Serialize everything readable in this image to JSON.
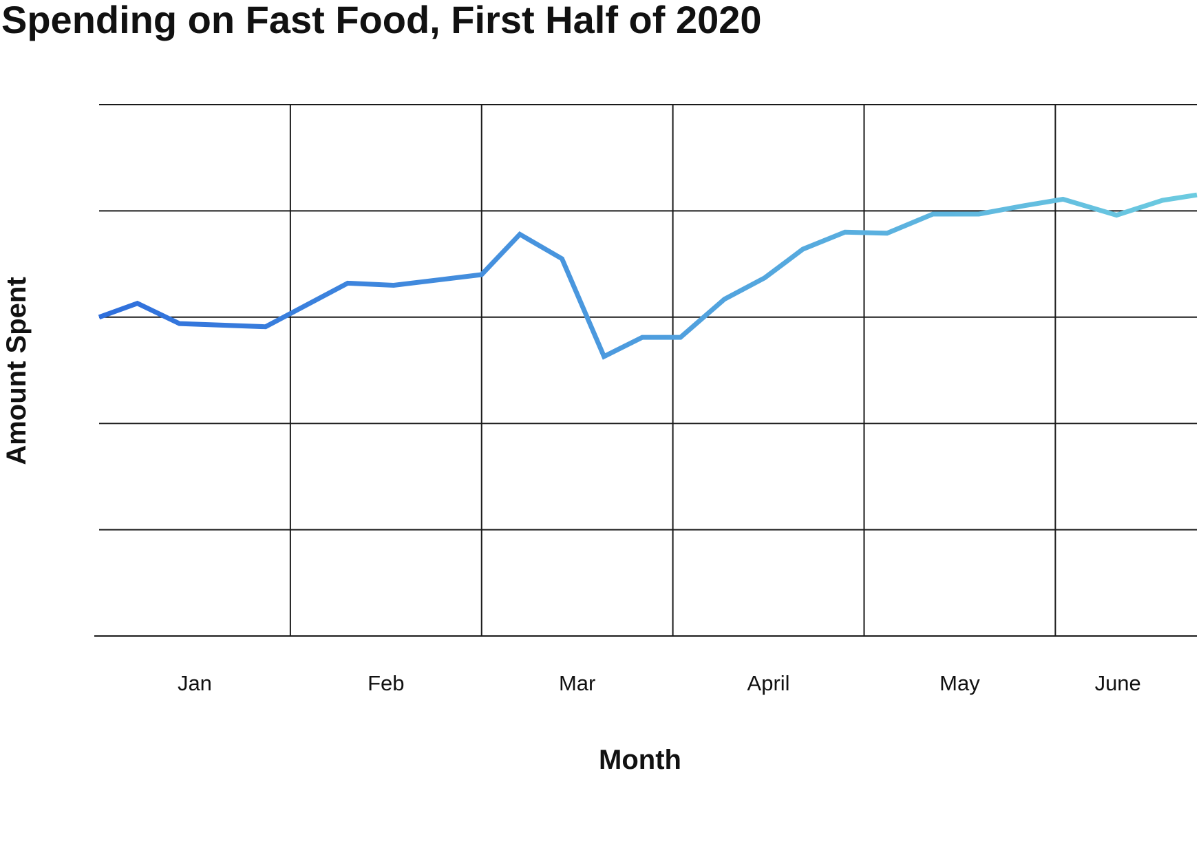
{
  "chart_data": {
    "type": "line",
    "title": "Spending on Fast Food, First Half of 2020",
    "xlabel": "Month",
    "ylabel": "Amount Spent",
    "categories": [
      "Jan",
      "Feb",
      "Mar",
      "April",
      "May",
      "June"
    ],
    "grid": true,
    "y_tick_labels_shown": false,
    "ylim": [
      0,
      5
    ],
    "line_gradient": {
      "start": "#2f6fdc",
      "end": "#6ccbe0"
    },
    "series": [
      {
        "x": [
          0.0,
          0.2,
          0.42,
          0.87,
          1.3,
          1.54,
          2.0,
          2.2,
          2.42,
          2.64,
          2.84,
          3.04,
          3.27,
          3.48,
          3.68,
          3.9,
          4.12,
          4.36,
          4.6,
          4.84,
          5.04,
          5.32,
          5.56,
          5.74
        ],
        "values": [
          3.0,
          3.13,
          2.94,
          2.91,
          3.32,
          3.3,
          3.4,
          3.78,
          3.55,
          2.63,
          2.81,
          2.81,
          3.17,
          3.37,
          3.64,
          3.8,
          3.79,
          3.97,
          3.97,
          4.05,
          4.11,
          3.96,
          4.1,
          4.15
        ]
      }
    ]
  }
}
